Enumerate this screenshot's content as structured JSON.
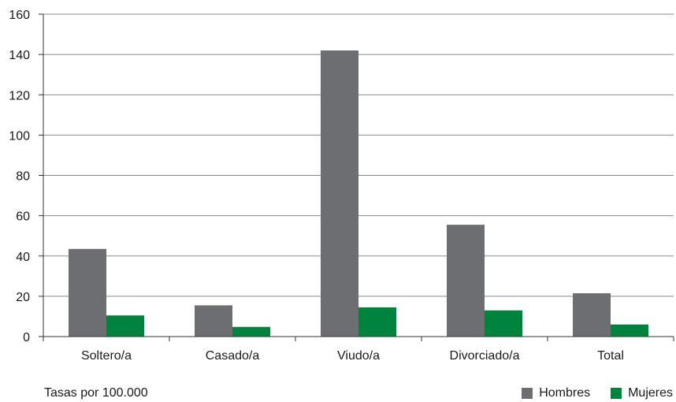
{
  "chart_data": {
    "type": "bar",
    "categories": [
      "Soltero/a",
      "Casado/a",
      "Viudo/a",
      "Divorciado/a",
      "Total"
    ],
    "series": [
      {
        "name": "Hombres",
        "values": [
          43.5,
          15.5,
          142,
          55.5,
          21.5
        ],
        "color": "#6d6e71"
      },
      {
        "name": "Mujeres",
        "values": [
          10.5,
          4.8,
          14.5,
          13.0,
          6.0
        ],
        "color": "#00843d"
      }
    ],
    "ylim": [
      0,
      160
    ],
    "yticks": [
      0,
      20,
      40,
      60,
      80,
      100,
      120,
      140,
      160
    ],
    "grid": true,
    "legend_position": "bottom-right"
  },
  "note": "Tasas por 100.000"
}
